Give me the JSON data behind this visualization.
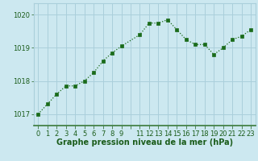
{
  "x": [
    0,
    1,
    2,
    3,
    4,
    5,
    6,
    7,
    8,
    9,
    11,
    12,
    13,
    14,
    15,
    16,
    17,
    18,
    19,
    20,
    21,
    22,
    23
  ],
  "y": [
    1017.0,
    1017.3,
    1017.6,
    1017.85,
    1017.85,
    1018.0,
    1018.25,
    1018.6,
    1018.85,
    1019.05,
    1019.4,
    1019.75,
    1019.75,
    1019.85,
    1019.55,
    1019.25,
    1019.1,
    1019.1,
    1018.8,
    1019.0,
    1019.25,
    1019.35,
    1019.55
  ],
  "line_color": "#1a6b1a",
  "marker_color": "#1a6b1a",
  "bg_color": "#cce8f0",
  "grid_color": "#aacfdb",
  "axis_label_color": "#1a5c1a",
  "ylabel_ticks": [
    1017,
    1018,
    1019,
    1020
  ],
  "ylim": [
    1016.65,
    1020.35
  ],
  "xlabel": "Graphe pression niveau de la mer (hPa)",
  "xtick_labels": [
    "0",
    "1",
    "2",
    "3",
    "4",
    "5",
    "6",
    "7",
    "8",
    "9",
    "",
    "11",
    "12",
    "13",
    "14",
    "15",
    "16",
    "17",
    "18",
    "19",
    "20",
    "21",
    "22",
    "23"
  ],
  "xtick_positions": [
    0,
    1,
    2,
    3,
    4,
    5,
    6,
    7,
    8,
    9,
    10,
    11,
    12,
    13,
    14,
    15,
    16,
    17,
    18,
    19,
    20,
    21,
    22,
    23
  ],
  "tick_fontsize": 6.0,
  "xlabel_fontsize": 7.0,
  "marker_size": 2.8,
  "line_width": 0.9
}
